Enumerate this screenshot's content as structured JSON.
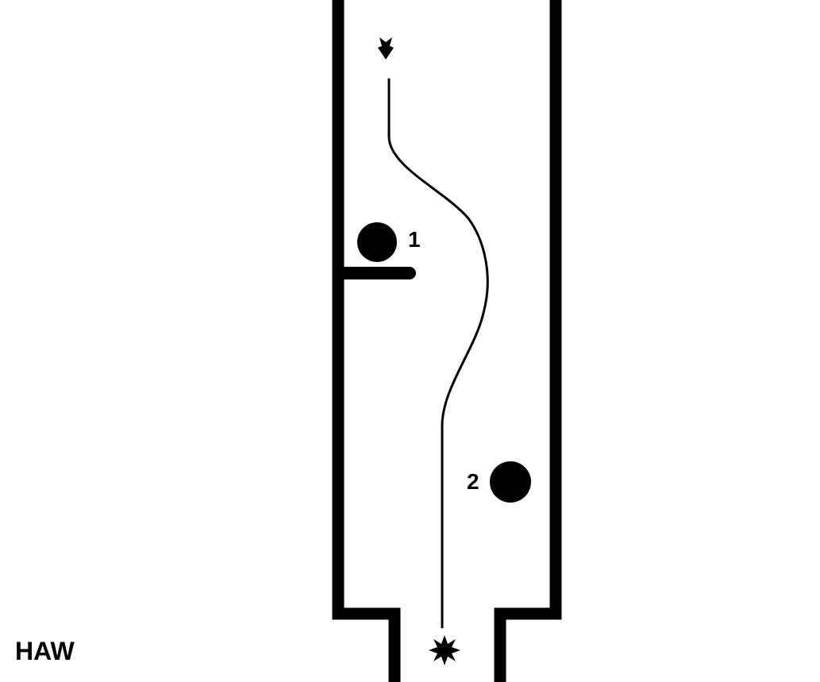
{
  "diagram": {
    "corner_label": "HAW",
    "markers": [
      {
        "label": "1"
      },
      {
        "label": "2"
      }
    ],
    "start_symbol": "arrow-down-icon",
    "end_symbol": "starburst-icon",
    "colors": {
      "ink": "#000000",
      "background": "#ffffff"
    }
  }
}
